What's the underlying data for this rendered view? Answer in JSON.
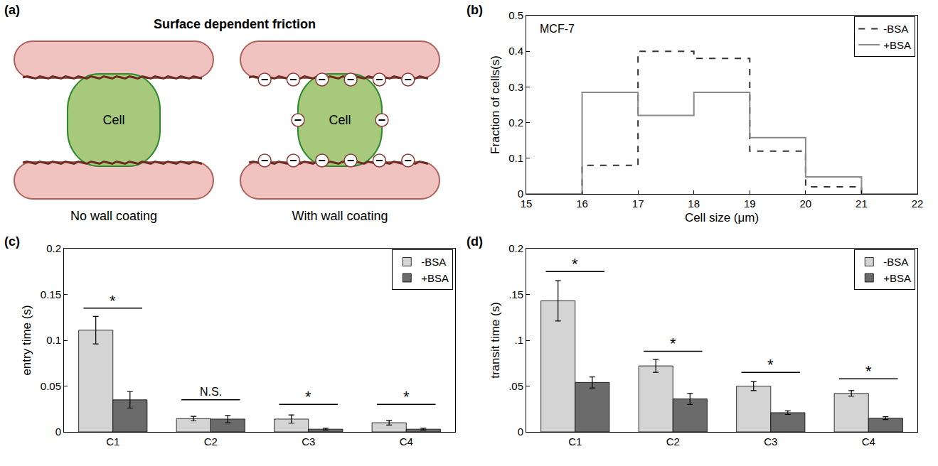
{
  "diagram": {
    "panel": "(a)",
    "title": "Surface dependent friction",
    "channels": [
      {
        "cell": "Cell",
        "caption": "No wall coating"
      },
      {
        "cell": "Cell",
        "caption": "With wall coating"
      }
    ]
  },
  "chart_data": [
    {
      "panel": "(b)",
      "type": "histogram",
      "annotations": [
        {
          "text": "MCF-7"
        }
      ],
      "xlabel": "Cell size (μm)",
      "ylabel": "Fraction of cells(s)",
      "bins": [
        15,
        16,
        17,
        18,
        19,
        20,
        21,
        22
      ],
      "series": [
        {
          "name": "-BSA",
          "color": "#333333",
          "line_style": "dashed",
          "values": [
            0,
            0.08,
            0.4,
            0.38,
            0.12,
            0.02,
            0
          ]
        },
        {
          "name": "+BSA",
          "color": "#8a8a8a",
          "line_style": "solid",
          "values": [
            0,
            0.285,
            0.22,
            0.285,
            0.158,
            0.048,
            0
          ]
        }
      ],
      "xlim": [
        15,
        22
      ],
      "xticks": [
        15,
        16,
        17,
        18,
        19,
        20,
        21,
        22
      ],
      "ylim": [
        0,
        0.5
      ],
      "yticks": [
        0,
        0.1,
        0.2,
        0.3,
        0.4,
        0.5
      ],
      "legend": "top-right",
      "grid": false
    },
    {
      "panel": "(c)",
      "type": "bar",
      "ylabel": "entry time (s)",
      "categories": [
        "C1",
        "C2",
        "C3",
        "C4"
      ],
      "series": [
        {
          "name": "-BSA",
          "color": "#d4d4d4",
          "values": [
            0.111,
            0.0145,
            0.014,
            0.01
          ],
          "errors": [
            0.015,
            0.0025,
            0.0045,
            0.0025
          ]
        },
        {
          "name": "+BSA",
          "color": "#6b6b6b",
          "values": [
            0.035,
            0.014,
            0.003,
            0.003
          ],
          "errors": [
            0.009,
            0.004,
            0.001,
            0.001
          ]
        }
      ],
      "annotations": [
        {
          "category": "C1",
          "text": "*",
          "y": 0.135
        },
        {
          "category": "C2",
          "text": "N.S.",
          "y": 0.035
        },
        {
          "category": "C3",
          "text": "*",
          "y": 0.03
        },
        {
          "category": "C4",
          "text": "*",
          "y": 0.03
        }
      ],
      "ylim": [
        0,
        0.2
      ],
      "yticks": [
        0,
        0.05,
        0.1,
        0.15,
        0.2
      ],
      "legend": "top-right",
      "grid": false
    },
    {
      "panel": "(d)",
      "type": "bar",
      "ylabel": "transit time (s)",
      "categories": [
        "C1",
        "C2",
        "C3",
        "C4"
      ],
      "series": [
        {
          "name": "-BSA",
          "color": "#d4d4d4",
          "values": [
            0.143,
            0.072,
            0.05,
            0.042
          ],
          "errors": [
            0.022,
            0.007,
            0.005,
            0.003
          ]
        },
        {
          "name": "+BSA",
          "color": "#6b6b6b",
          "values": [
            0.054,
            0.036,
            0.021,
            0.015
          ],
          "errors": [
            0.006,
            0.006,
            0.002,
            0.0015
          ]
        }
      ],
      "annotations": [
        {
          "category": "C1",
          "text": "*",
          "y": 0.175
        },
        {
          "category": "C2",
          "text": "*",
          "y": 0.088
        },
        {
          "category": "C3",
          "text": "*",
          "y": 0.065
        },
        {
          "category": "C4",
          "text": "*",
          "y": 0.058
        }
      ],
      "ylim": [
        0,
        0.2
      ],
      "yticks": [
        0,
        {
          "value": 0.05,
          "label": ".05"
        },
        {
          "value": 0.1,
          "label": ".1"
        },
        {
          "value": 0.15,
          "label": ".15"
        },
        0.2
      ],
      "legend": "top-right",
      "grid": false
    }
  ]
}
